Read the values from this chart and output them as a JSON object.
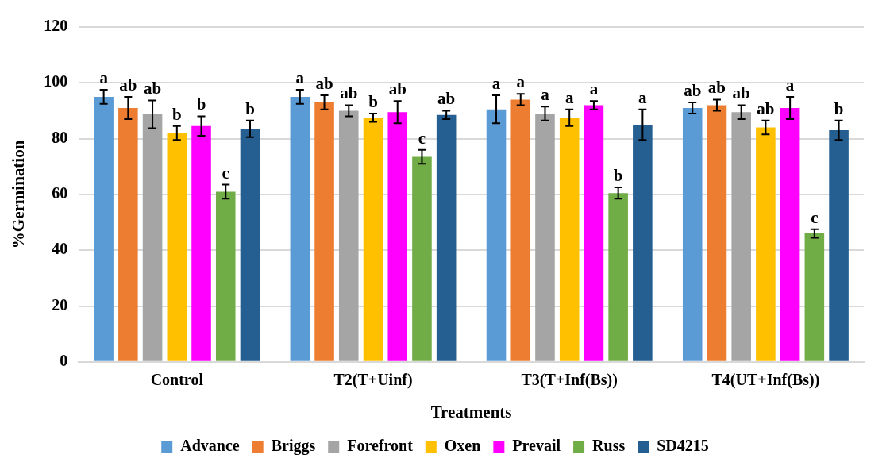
{
  "chart_data": {
    "type": "bar",
    "xlabel": "Treatments",
    "ylabel": "%Germination",
    "categories": [
      "Control",
      "T2(T+Uinf)",
      "T3(T+Inf(Bs))",
      "T4(UT+Inf(Bs))"
    ],
    "ylim": [
      0,
      120
    ],
    "yticks": [
      0,
      20,
      40,
      60,
      80,
      100,
      120
    ],
    "grid": "y",
    "legend": "bottom",
    "series": [
      {
        "name": "Advance",
        "color": "#5b9bd5",
        "values": [
          95,
          95,
          90.5,
          91
        ],
        "errors": [
          2.5,
          2.5,
          5,
          2
        ],
        "value_labels": [
          "a",
          "a",
          "a",
          "ab"
        ]
      },
      {
        "name": "Briggs",
        "color": "#ed7d31",
        "values": [
          91,
          93,
          94,
          92
        ],
        "errors": [
          4,
          2.5,
          2,
          2
        ],
        "value_labels": [
          "ab",
          "ab",
          "a",
          "ab"
        ]
      },
      {
        "name": "Forefront",
        "color": "#a5a5a5",
        "values": [
          88.7,
          90,
          89,
          89.5
        ],
        "errors": [
          5,
          2,
          2.5,
          2.5
        ],
        "value_labels": [
          "ab",
          "ab",
          "a",
          "ab"
        ]
      },
      {
        "name": "Oxen",
        "color": "#ffc000",
        "values": [
          82,
          87.5,
          87.5,
          84
        ],
        "errors": [
          2.5,
          1.5,
          3,
          2.5
        ],
        "value_labels": [
          "b",
          "b",
          "a",
          "ab"
        ]
      },
      {
        "name": "Prevail",
        "color": "#ff00ff",
        "values": [
          84.5,
          89.5,
          92,
          91
        ],
        "errors": [
          3.5,
          4,
          1.5,
          4
        ],
        "value_labels": [
          "b",
          "ab",
          "a",
          "a"
        ]
      },
      {
        "name": "Russ",
        "color": "#70ad47",
        "values": [
          61,
          73.5,
          60.5,
          46
        ],
        "errors": [
          2.5,
          2.5,
          2,
          1.5
        ],
        "value_labels": [
          "c",
          "c",
          "b",
          "c"
        ]
      },
      {
        "name": "SD4215",
        "color": "#255e91",
        "values": [
          83.5,
          88.5,
          85,
          83
        ],
        "errors": [
          3,
          1.5,
          5.5,
          3.5
        ],
        "value_labels": [
          "b",
          "ab",
          "a",
          "b"
        ]
      }
    ]
  }
}
